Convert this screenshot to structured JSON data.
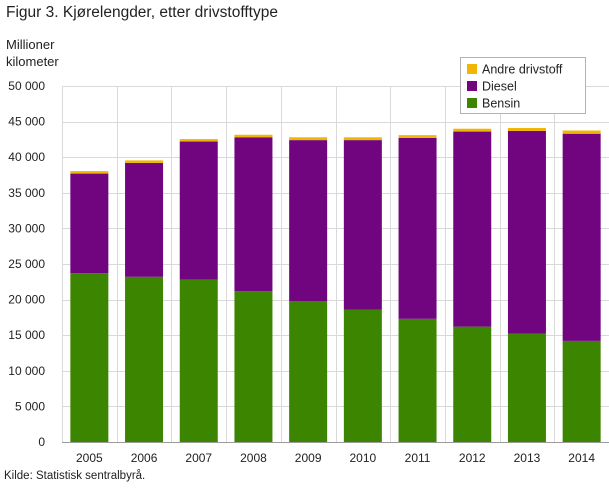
{
  "figure": {
    "title": "Figur 3. Kjørelengder, etter drivstofftype",
    "source": "Kilde: Statistisk sentralbyrå."
  },
  "chart_data": {
    "type": "bar",
    "stacked": true,
    "title": "Figur 3. Kjørelengder, etter drivstofftype",
    "ylabel_lines": [
      "Millioner",
      "kilometer"
    ],
    "xlabel": "",
    "ylim": [
      0,
      50000
    ],
    "yticks": [
      0,
      5000,
      10000,
      15000,
      20000,
      25000,
      30000,
      35000,
      40000,
      45000,
      50000
    ],
    "ytick_labels": [
      "0",
      "5 000",
      "10 000",
      "15 000",
      "20 000",
      "25 000",
      "30 000",
      "35 000",
      "40 000",
      "45 000",
      "50 000"
    ],
    "grid": true,
    "legend_position": "top-right",
    "categories": [
      "2005",
      "2006",
      "2007",
      "2008",
      "2009",
      "2010",
      "2011",
      "2012",
      "2013",
      "2014"
    ],
    "series": [
      {
        "name": "Bensin",
        "color": "#3c8500",
        "values": [
          23700,
          23200,
          22800,
          21200,
          19800,
          18600,
          17300,
          16200,
          15200,
          14200
        ]
      },
      {
        "name": "Diesel",
        "color": "#70057f",
        "values": [
          14000,
          16000,
          19400,
          21600,
          22600,
          23800,
          25400,
          27400,
          28500,
          29100
        ]
      },
      {
        "name": "Andre drivstoff",
        "color": "#f1b700",
        "values": [
          350,
          350,
          350,
          350,
          400,
          400,
          400,
          400,
          400,
          450
        ]
      }
    ]
  }
}
